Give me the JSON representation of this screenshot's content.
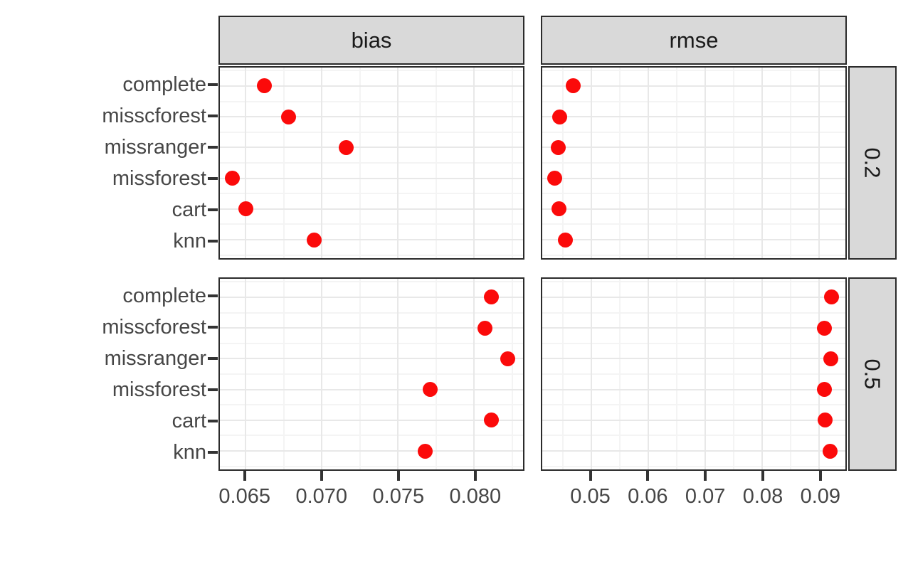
{
  "chart_data": {
    "type": "scatter",
    "title": "",
    "subtitle": "",
    "xlabel": "",
    "ylabel": "",
    "legend": "none",
    "grid": true,
    "point_color": "#fb0a0a",
    "facet_cols": [
      "bias",
      "rmse"
    ],
    "facet_rows": [
      "0.2",
      "0.5"
    ],
    "categories": [
      "complete",
      "misscforest",
      "missranger",
      "missforest",
      "cart",
      "knn"
    ],
    "x_axes": {
      "bias": {
        "tick_labels": [
          "0.065",
          "0.070",
          "0.075",
          "0.080"
        ],
        "tick_values": [
          0.065,
          0.07,
          0.075,
          0.08
        ],
        "minor_ticks": [
          0.0675,
          0.0725,
          0.0775,
          0.0825
        ],
        "xlim": [
          0.0633,
          0.0832
        ]
      },
      "rmse": {
        "tick_labels": [
          "0.05",
          "0.06",
          "0.07",
          "0.08",
          "0.09"
        ],
        "tick_values": [
          0.05,
          0.06,
          0.07,
          0.08,
          0.09
        ],
        "minor_ticks": [
          0.045,
          0.055,
          0.065,
          0.075,
          0.085
        ],
        "xlim": [
          0.0414,
          0.0946
        ]
      }
    },
    "panels": [
      {
        "facet_col": "bias",
        "facet_row": "0.2",
        "values": [
          0.0662,
          0.0678,
          0.0716,
          0.0641,
          0.065,
          0.0695
        ]
      },
      {
        "facet_col": "rmse",
        "facet_row": "0.2",
        "values": [
          0.0468,
          0.0445,
          0.0442,
          0.0436,
          0.0443,
          0.0455
        ]
      },
      {
        "facet_col": "bias",
        "facet_row": "0.5",
        "values": [
          0.0811,
          0.0807,
          0.0822,
          0.0771,
          0.0811,
          0.0768
        ]
      },
      {
        "facet_col": "rmse",
        "facet_row": "0.5",
        "values": [
          0.0922,
          0.0909,
          0.092,
          0.0909,
          0.091,
          0.0919
        ]
      }
    ]
  }
}
